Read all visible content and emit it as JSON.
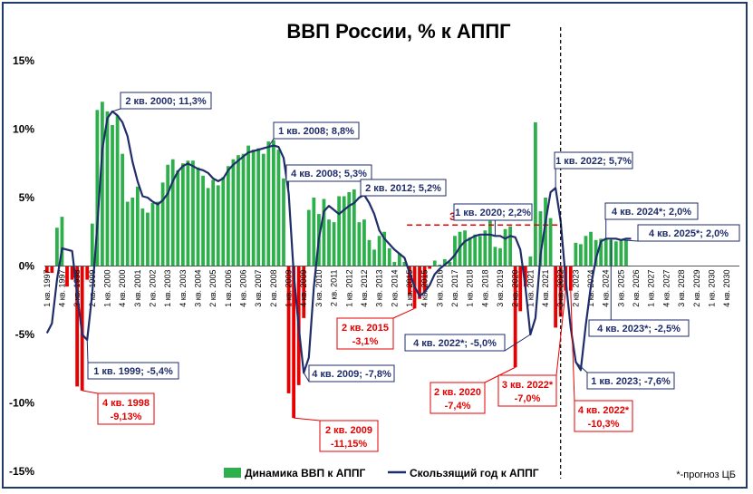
{
  "chart_data": {
    "type": "bar",
    "title": "ВВП России, % к АППГ",
    "xlabel": "",
    "ylabel": "",
    "ylim": [
      -15,
      15
    ],
    "y_ticks": [
      "15%",
      "10%",
      "5%",
      "0%",
      "-5%",
      "-10%",
      "-15%"
    ],
    "grid": false,
    "legend_position": "bottom",
    "x_tick_labels": [
      "1 кв. 1997",
      "4 кв. 1997",
      "3 кв. 1998",
      "2 кв. 1999",
      "1 кв. 2000",
      "4 кв. 2000",
      "3 кв. 2001",
      "2 кв. 2002",
      "1 кв. 2003",
      "4 кв. 2003",
      "3 кв. 2004",
      "2 кв. 2005",
      "1 кв. 2006",
      "4 кв. 2006",
      "3 кв. 2007",
      "2 кв. 2008",
      "1 кв. 2009",
      "4 кв. 2009",
      "3 кв. 2010",
      "2 кв. 2011",
      "1 кв. 2012",
      "4 кв. 2012",
      "3 кв. 2013",
      "2 кв. 2014",
      "1 кв. 2015",
      "4 кв. 2015",
      "3 кв. 2016",
      "2 кв. 2017",
      "1 кв. 2018",
      "4 кв. 2018",
      "3 кв. 2019",
      "2 кв. 2020",
      "1 кв. 2021",
      "4 кв. 2021",
      "3 кв. 2022",
      "2 кв. 2023",
      "1 кв. 2024",
      "4 кв. 2024",
      "3 кв. 2025",
      "2 кв. 2026",
      "1 кв. 2027",
      "4 кв. 2027",
      "3 кв. 2028",
      "2 кв. 2029",
      "1 кв. 2030",
      "4 кв. 2030"
    ],
    "x_tick_every": 3,
    "series": [
      {
        "name": "Динамика ВВП к АППГ",
        "kind": "bar",
        "color_positive": "#2db04b",
        "color_negative": "#e60000",
        "values": [
          -0.5,
          -0.5,
          2.8,
          3.6,
          -1.5,
          -1.0,
          -8.8,
          -9.1,
          -1.0,
          3.1,
          11.4,
          12.0,
          11.3,
          10.3,
          11.0,
          8.2,
          4.7,
          5.0,
          5.8,
          4.2,
          3.9,
          4.6,
          4.7,
          6.1,
          7.4,
          7.8,
          7.0,
          7.5,
          7.7,
          7.7,
          7.2,
          6.6,
          5.7,
          6.3,
          5.9,
          6.5,
          7.3,
          7.8,
          8.1,
          8.2,
          8.8,
          8.5,
          8.6,
          8.2,
          9.1,
          9.2,
          8.5,
          6.4,
          -9.3,
          -11.1,
          -8.7,
          -3.8,
          4.1,
          5.0,
          3.8,
          4.9,
          3.4,
          3.2,
          5.1,
          5.1,
          5.4,
          5.6,
          3.2,
          3.4,
          1.9,
          1.2,
          2.2,
          2.5,
          1.3,
          0.3,
          0.9,
          0.3,
          -2.1,
          -3.1,
          -2.4,
          -1.9,
          -0.2,
          0.4,
          0.1,
          0.5,
          0.3,
          2.2,
          2.5,
          2.6,
          2.1,
          2.3,
          2.2,
          2.6,
          3.3,
          1.4,
          1.3,
          2.7,
          2.9,
          -7.4,
          -3.3,
          -1.5,
          0.7,
          10.5,
          4.0,
          5.0,
          3.5,
          -4.5,
          -3.7,
          -1.8,
          -1.8,
          1.7,
          1.6,
          2.2,
          2.5,
          1.9,
          2.0,
          2.0,
          1.9,
          1.8,
          1.9,
          1.9
        ]
      },
      {
        "name": "Скользящий год к АППГ",
        "kind": "line",
        "color": "#1f2d6b",
        "values": [
          -4.9,
          -4.2,
          -1.0,
          1.3,
          1.2,
          1.1,
          -2.0,
          -5.0,
          -5.4,
          -2.0,
          3.0,
          8.5,
          10.8,
          11.3,
          11.0,
          10.5,
          9.5,
          7.6,
          6.2,
          5.1,
          5.0,
          4.7,
          4.5,
          4.8,
          5.3,
          6.2,
          6.9,
          7.3,
          7.5,
          7.3,
          7.1,
          7.0,
          6.8,
          6.4,
          6.2,
          6.4,
          7.0,
          7.4,
          7.7,
          8.0,
          8.3,
          8.4,
          8.5,
          8.6,
          8.7,
          8.8,
          8.7,
          7.9,
          5.3,
          -0.5,
          -4.5,
          -7.8,
          -6.7,
          -1.5,
          2.0,
          4.0,
          4.4,
          4.1,
          3.8,
          4.1,
          4.4,
          4.6,
          5.0,
          5.2,
          4.6,
          3.8,
          2.6,
          2.0,
          1.6,
          1.2,
          0.9,
          0.6,
          -0.5,
          -1.5,
          -2.2,
          -1.9,
          -1.4,
          -0.6,
          -0.2,
          0.1,
          0.4,
          0.8,
          1.4,
          1.8,
          2.0,
          2.2,
          2.3,
          2.3,
          2.3,
          2.2,
          2.2,
          2.0,
          2.2,
          2.1,
          1.2,
          -1.5,
          -5.0,
          -3.8,
          0.8,
          3.2,
          5.4,
          5.7,
          3.3,
          -1.0,
          -4.5,
          -7.0,
          -7.6,
          -4.3,
          -1.5,
          0.5,
          1.8,
          2.0,
          2.0,
          2.0,
          1.9,
          2.0,
          2.0
        ]
      }
    ],
    "reference_line": {
      "label": "3%",
      "value": 3,
      "color": "#e60000",
      "style": "dashed"
    },
    "forecast_divider_label": "*-прогноз ЦБ",
    "annotations": [
      {
        "text": "2 кв. 2000; 11,3%",
        "color": "#1f2d6b"
      },
      {
        "text": "1 кв. 2008; 8,8%",
        "color": "#1f2d6b"
      },
      {
        "text": "4 кв. 2008; 5,3%",
        "color": "#1f2d6b"
      },
      {
        "text": "2 кв. 2012; 5,2%",
        "color": "#1f2d6b"
      },
      {
        "text": "1 кв. 2020; 2,2%",
        "color": "#1f2d6b"
      },
      {
        "text": "1 кв. 2022; 5,7%",
        "color": "#1f2d6b"
      },
      {
        "text": "4 кв. 2024*; 2,0%",
        "color": "#1f2d6b"
      },
      {
        "text": "4 кв. 2025*; 2,0%",
        "color": "#1f2d6b"
      },
      {
        "text": "1 кв. 1999; -5,4%",
        "color": "#1f2d6b"
      },
      {
        "text": "4 кв. 2009; -7,8%",
        "color": "#1f2d6b"
      },
      {
        "text": "4 кв. 2022*; -5,0%",
        "color": "#1f2d6b"
      },
      {
        "text": "4 кв. 2023*; -2,5%",
        "color": "#1f2d6b"
      },
      {
        "text": "1 кв. 2023; -7,6%",
        "color": "#1f2d6b"
      },
      {
        "lines": [
          "4 кв. 1998",
          "-9,13%"
        ],
        "color": "#e60000"
      },
      {
        "lines": [
          "2 кв. 2015",
          "-3,1%"
        ],
        "color": "#e60000"
      },
      {
        "lines": [
          "2 кв. 2009",
          "-11,15%"
        ],
        "color": "#e60000"
      },
      {
        "lines": [
          "2 кв. 2020",
          "-7,4%"
        ],
        "color": "#e60000"
      },
      {
        "lines": [
          "3 кв. 2022*",
          "-7,0%"
        ],
        "color": "#e60000"
      },
      {
        "lines": [
          "4 кв. 2022*",
          "-10,3%"
        ],
        "color": "#e60000"
      }
    ]
  }
}
